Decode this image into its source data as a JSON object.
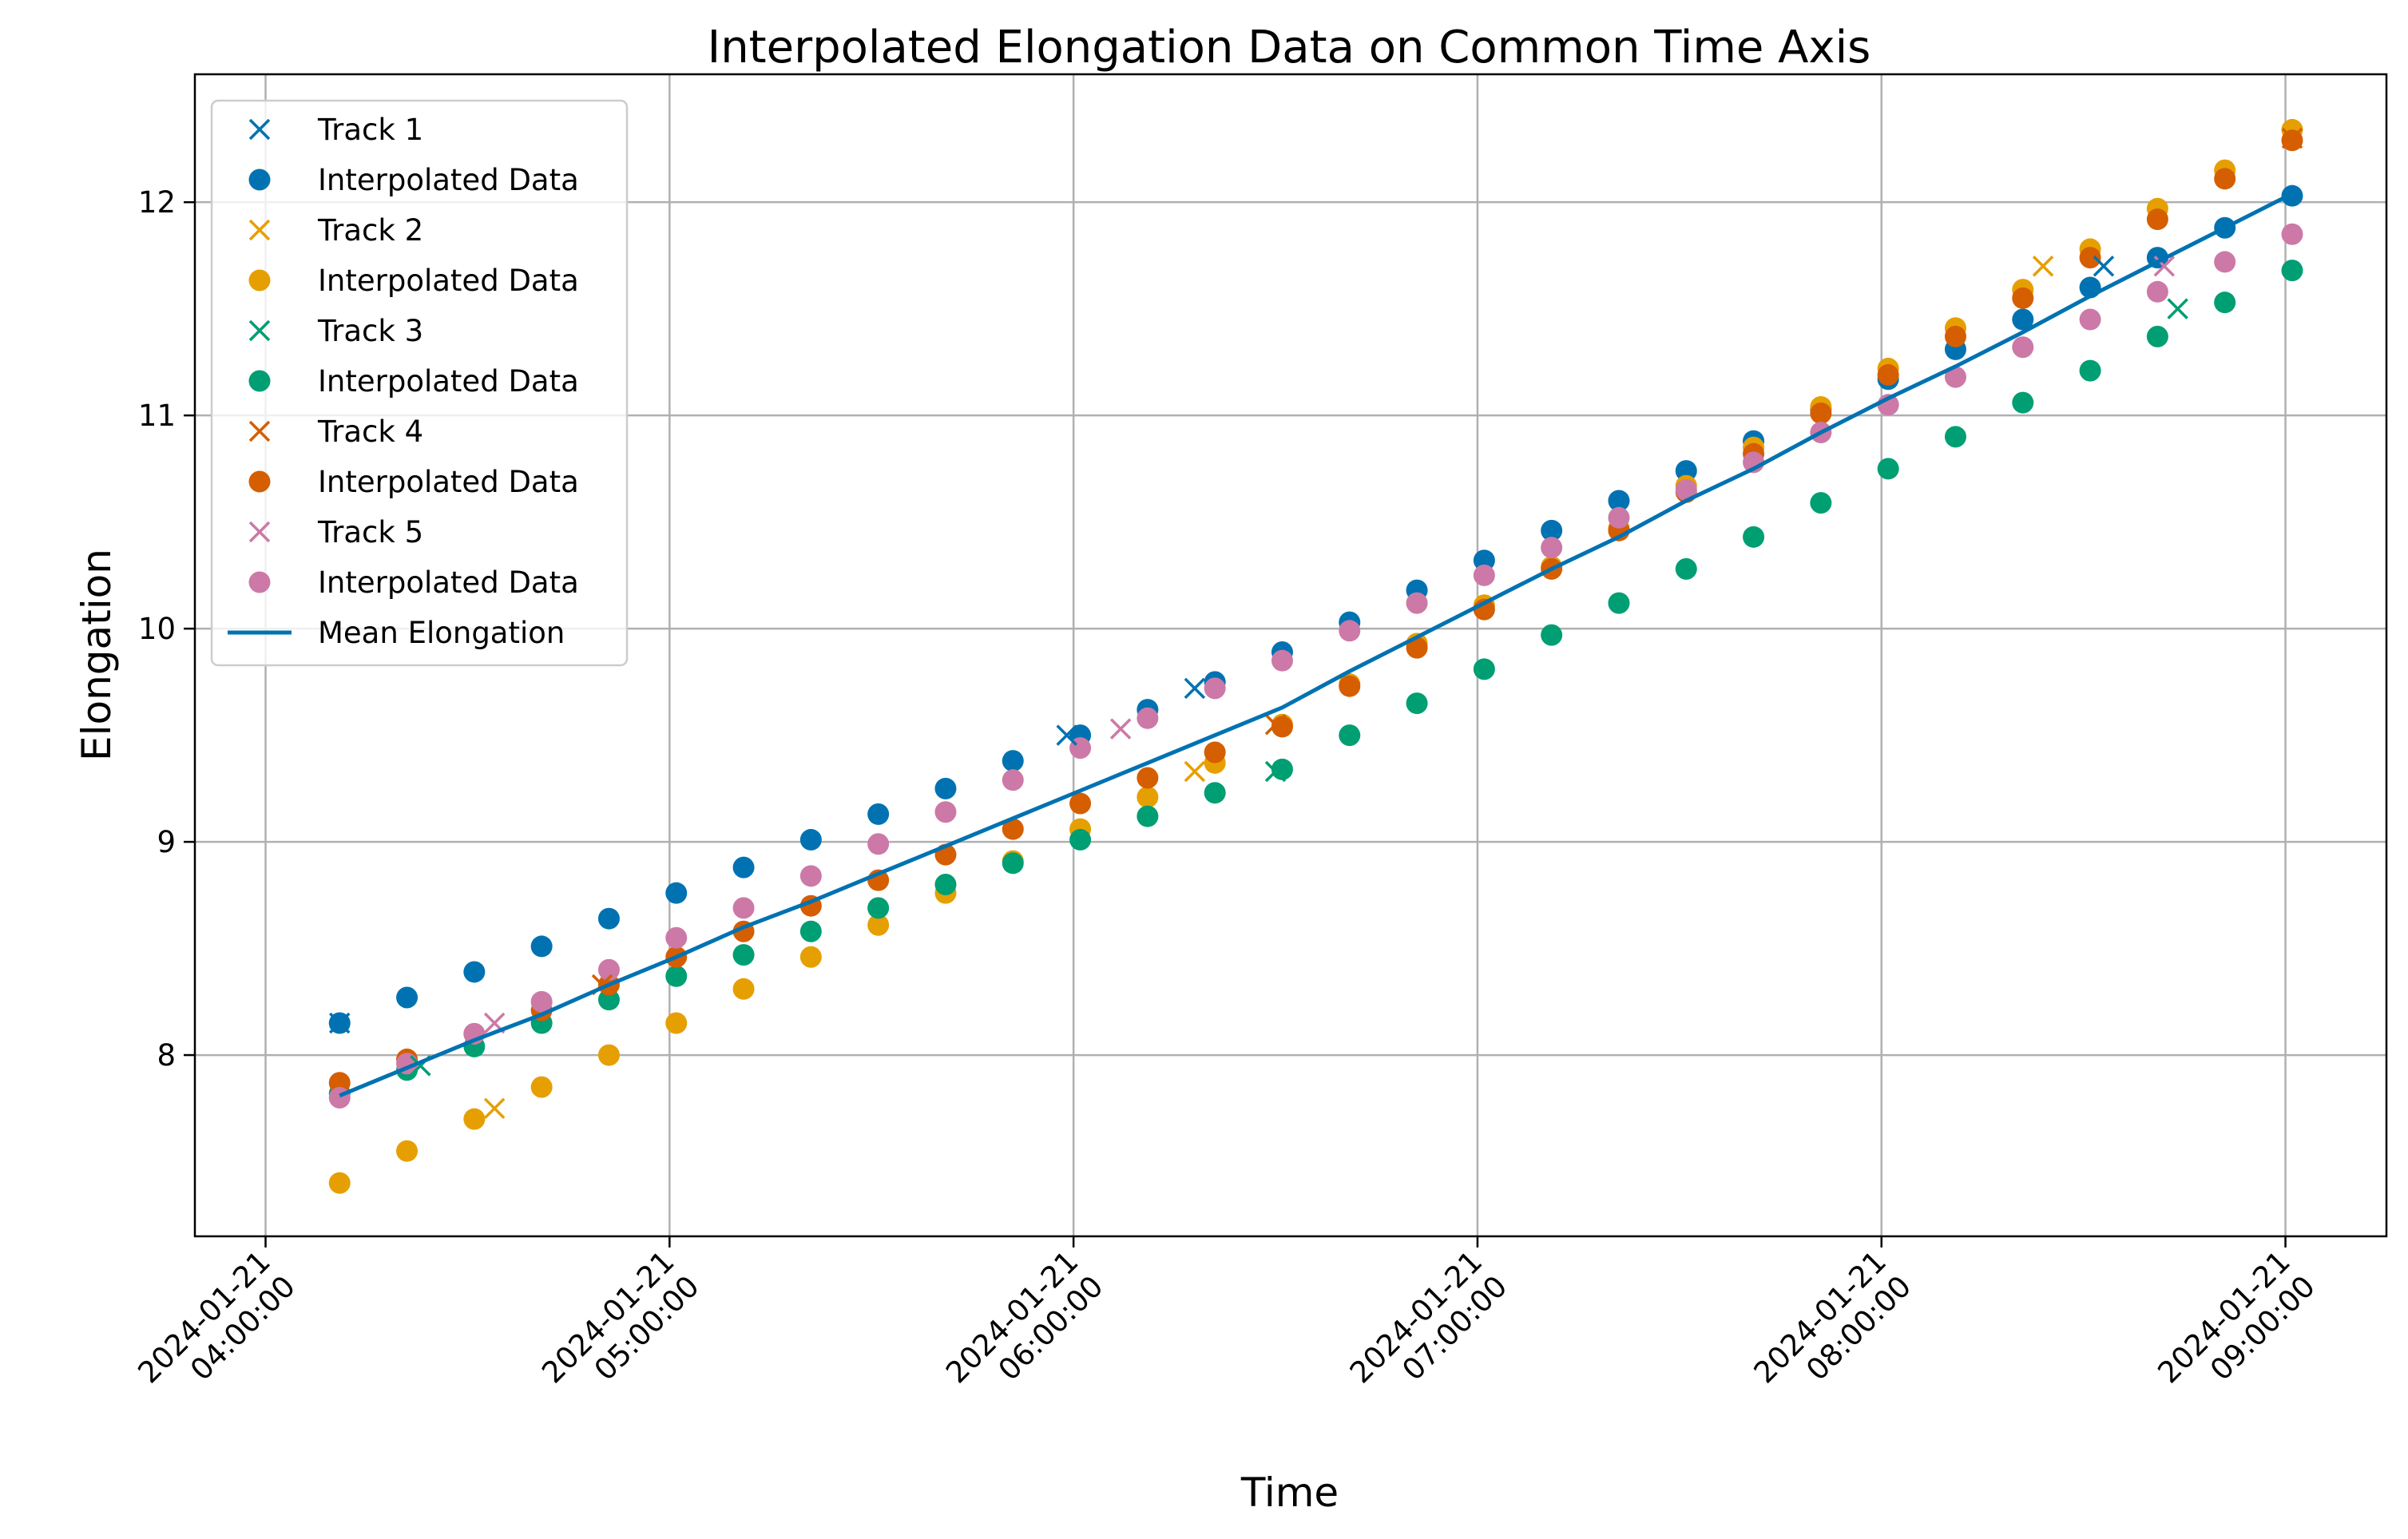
{
  "chart_data": {
    "type": "scatter",
    "title": "Interpolated Elongation Data on Common Time Axis",
    "xlabel": "Time",
    "ylabel": "Elongation",
    "x_ticks": [
      {
        "t": 240,
        "label": [
          "2024-01-21",
          "04:00:00"
        ]
      },
      {
        "t": 300,
        "label": [
          "2024-01-21",
          "05:00:00"
        ]
      },
      {
        "t": 360,
        "label": [
          "2024-01-21",
          "06:00:00"
        ]
      },
      {
        "t": 420,
        "label": [
          "2024-01-21",
          "07:00:00"
        ]
      },
      {
        "t": 480,
        "label": [
          "2024-01-21",
          "08:00:00"
        ]
      },
      {
        "t": 540,
        "label": [
          "2024-01-21",
          "09:00:00"
        ]
      }
    ],
    "y_ticks": [
      8,
      9,
      10,
      11,
      12
    ],
    "xlim": [
      229.5,
      555
    ],
    "ylim": [
      7.15,
      12.6
    ],
    "grid": true,
    "legend_position": "top-left",
    "common_time": [
      251,
      261,
      271,
      281,
      291,
      301,
      311,
      321,
      331,
      341,
      351,
      361,
      371,
      381,
      391,
      401,
      411,
      421,
      431,
      441,
      451,
      461,
      471,
      481,
      491,
      501,
      511,
      521,
      531,
      541
    ],
    "series": [
      {
        "name": "Track 1",
        "interp_name": "Interpolated Data",
        "color": "#0072b2",
        "raw": [
          [
            251,
            8.15
          ],
          [
            359,
            9.5
          ],
          [
            378,
            9.72
          ],
          [
            513,
            11.7
          ]
        ],
        "interp": [
          8.15,
          8.27,
          8.39,
          8.51,
          8.64,
          8.76,
          8.88,
          9.01,
          9.13,
          9.25,
          9.38,
          9.5,
          9.62,
          9.75,
          9.89,
          10.03,
          10.18,
          10.32,
          10.46,
          10.6,
          10.74,
          10.88,
          11.03,
          11.17,
          11.31,
          11.45,
          11.6,
          11.74,
          11.88,
          12.03
        ]
      },
      {
        "name": "Track 2",
        "interp_name": "Interpolated Data",
        "color": "#e69f00",
        "raw": [
          [
            274,
            7.75
          ],
          [
            378,
            9.33
          ],
          [
            504,
            11.7
          ]
        ],
        "interp": [
          7.4,
          7.55,
          7.7,
          7.85,
          8.0,
          8.15,
          8.31,
          8.46,
          8.61,
          8.76,
          8.91,
          9.06,
          9.21,
          9.37,
          9.55,
          9.74,
          9.93,
          10.11,
          10.29,
          10.47,
          10.67,
          10.85,
          11.04,
          11.22,
          11.41,
          11.59,
          11.78,
          11.97,
          12.15,
          12.34
        ]
      },
      {
        "name": "Track 3",
        "interp_name": "Interpolated Data",
        "color": "#009e73",
        "raw": [
          [
            263,
            7.95
          ],
          [
            390,
            9.33
          ],
          [
            524,
            11.5
          ]
        ],
        "interp": [
          7.82,
          7.93,
          8.04,
          8.15,
          8.26,
          8.37,
          8.47,
          8.58,
          8.69,
          8.8,
          8.9,
          9.01,
          9.12,
          9.23,
          9.34,
          9.5,
          9.65,
          9.81,
          9.97,
          10.12,
          10.28,
          10.43,
          10.59,
          10.75,
          10.9,
          11.06,
          11.21,
          11.37,
          11.53,
          11.68
        ]
      },
      {
        "name": "Track 4",
        "interp_name": "Interpolated Data",
        "color": "#d55e00",
        "raw": [
          [
            290,
            8.33
          ],
          [
            390,
            9.55
          ],
          [
            541,
            12.3
          ]
        ],
        "interp": [
          7.87,
          7.98,
          8.1,
          8.21,
          8.33,
          8.46,
          8.58,
          8.7,
          8.82,
          8.94,
          9.06,
          9.18,
          9.3,
          9.42,
          9.54,
          9.73,
          9.91,
          10.09,
          10.28,
          10.46,
          10.64,
          10.82,
          11.01,
          11.19,
          11.37,
          11.55,
          11.74,
          11.92,
          12.11,
          12.29
        ]
      },
      {
        "name": "Track 5",
        "interp_name": "Interpolated Data",
        "color": "#cc79a7",
        "raw": [
          [
            274,
            8.15
          ],
          [
            367,
            9.53
          ],
          [
            522,
            11.7
          ]
        ],
        "interp": [
          7.8,
          7.96,
          8.1,
          8.25,
          8.4,
          8.55,
          8.69,
          8.84,
          8.99,
          9.14,
          9.29,
          9.44,
          9.58,
          9.72,
          9.85,
          9.99,
          10.12,
          10.25,
          10.38,
          10.52,
          10.65,
          10.78,
          10.92,
          11.05,
          11.18,
          11.32,
          11.45,
          11.58,
          11.72,
          11.85
        ]
      }
    ],
    "mean_series": {
      "name": "Mean Elongation",
      "color": "#0072b2",
      "values": [
        7.81,
        7.94,
        8.07,
        8.19,
        8.33,
        8.46,
        8.6,
        8.72,
        8.85,
        8.98,
        9.11,
        9.24,
        9.37,
        9.5,
        9.63,
        9.8,
        9.96,
        10.12,
        10.28,
        10.43,
        10.6,
        10.75,
        10.92,
        11.08,
        11.23,
        11.39,
        11.56,
        11.72,
        11.88,
        12.04
      ]
    }
  }
}
